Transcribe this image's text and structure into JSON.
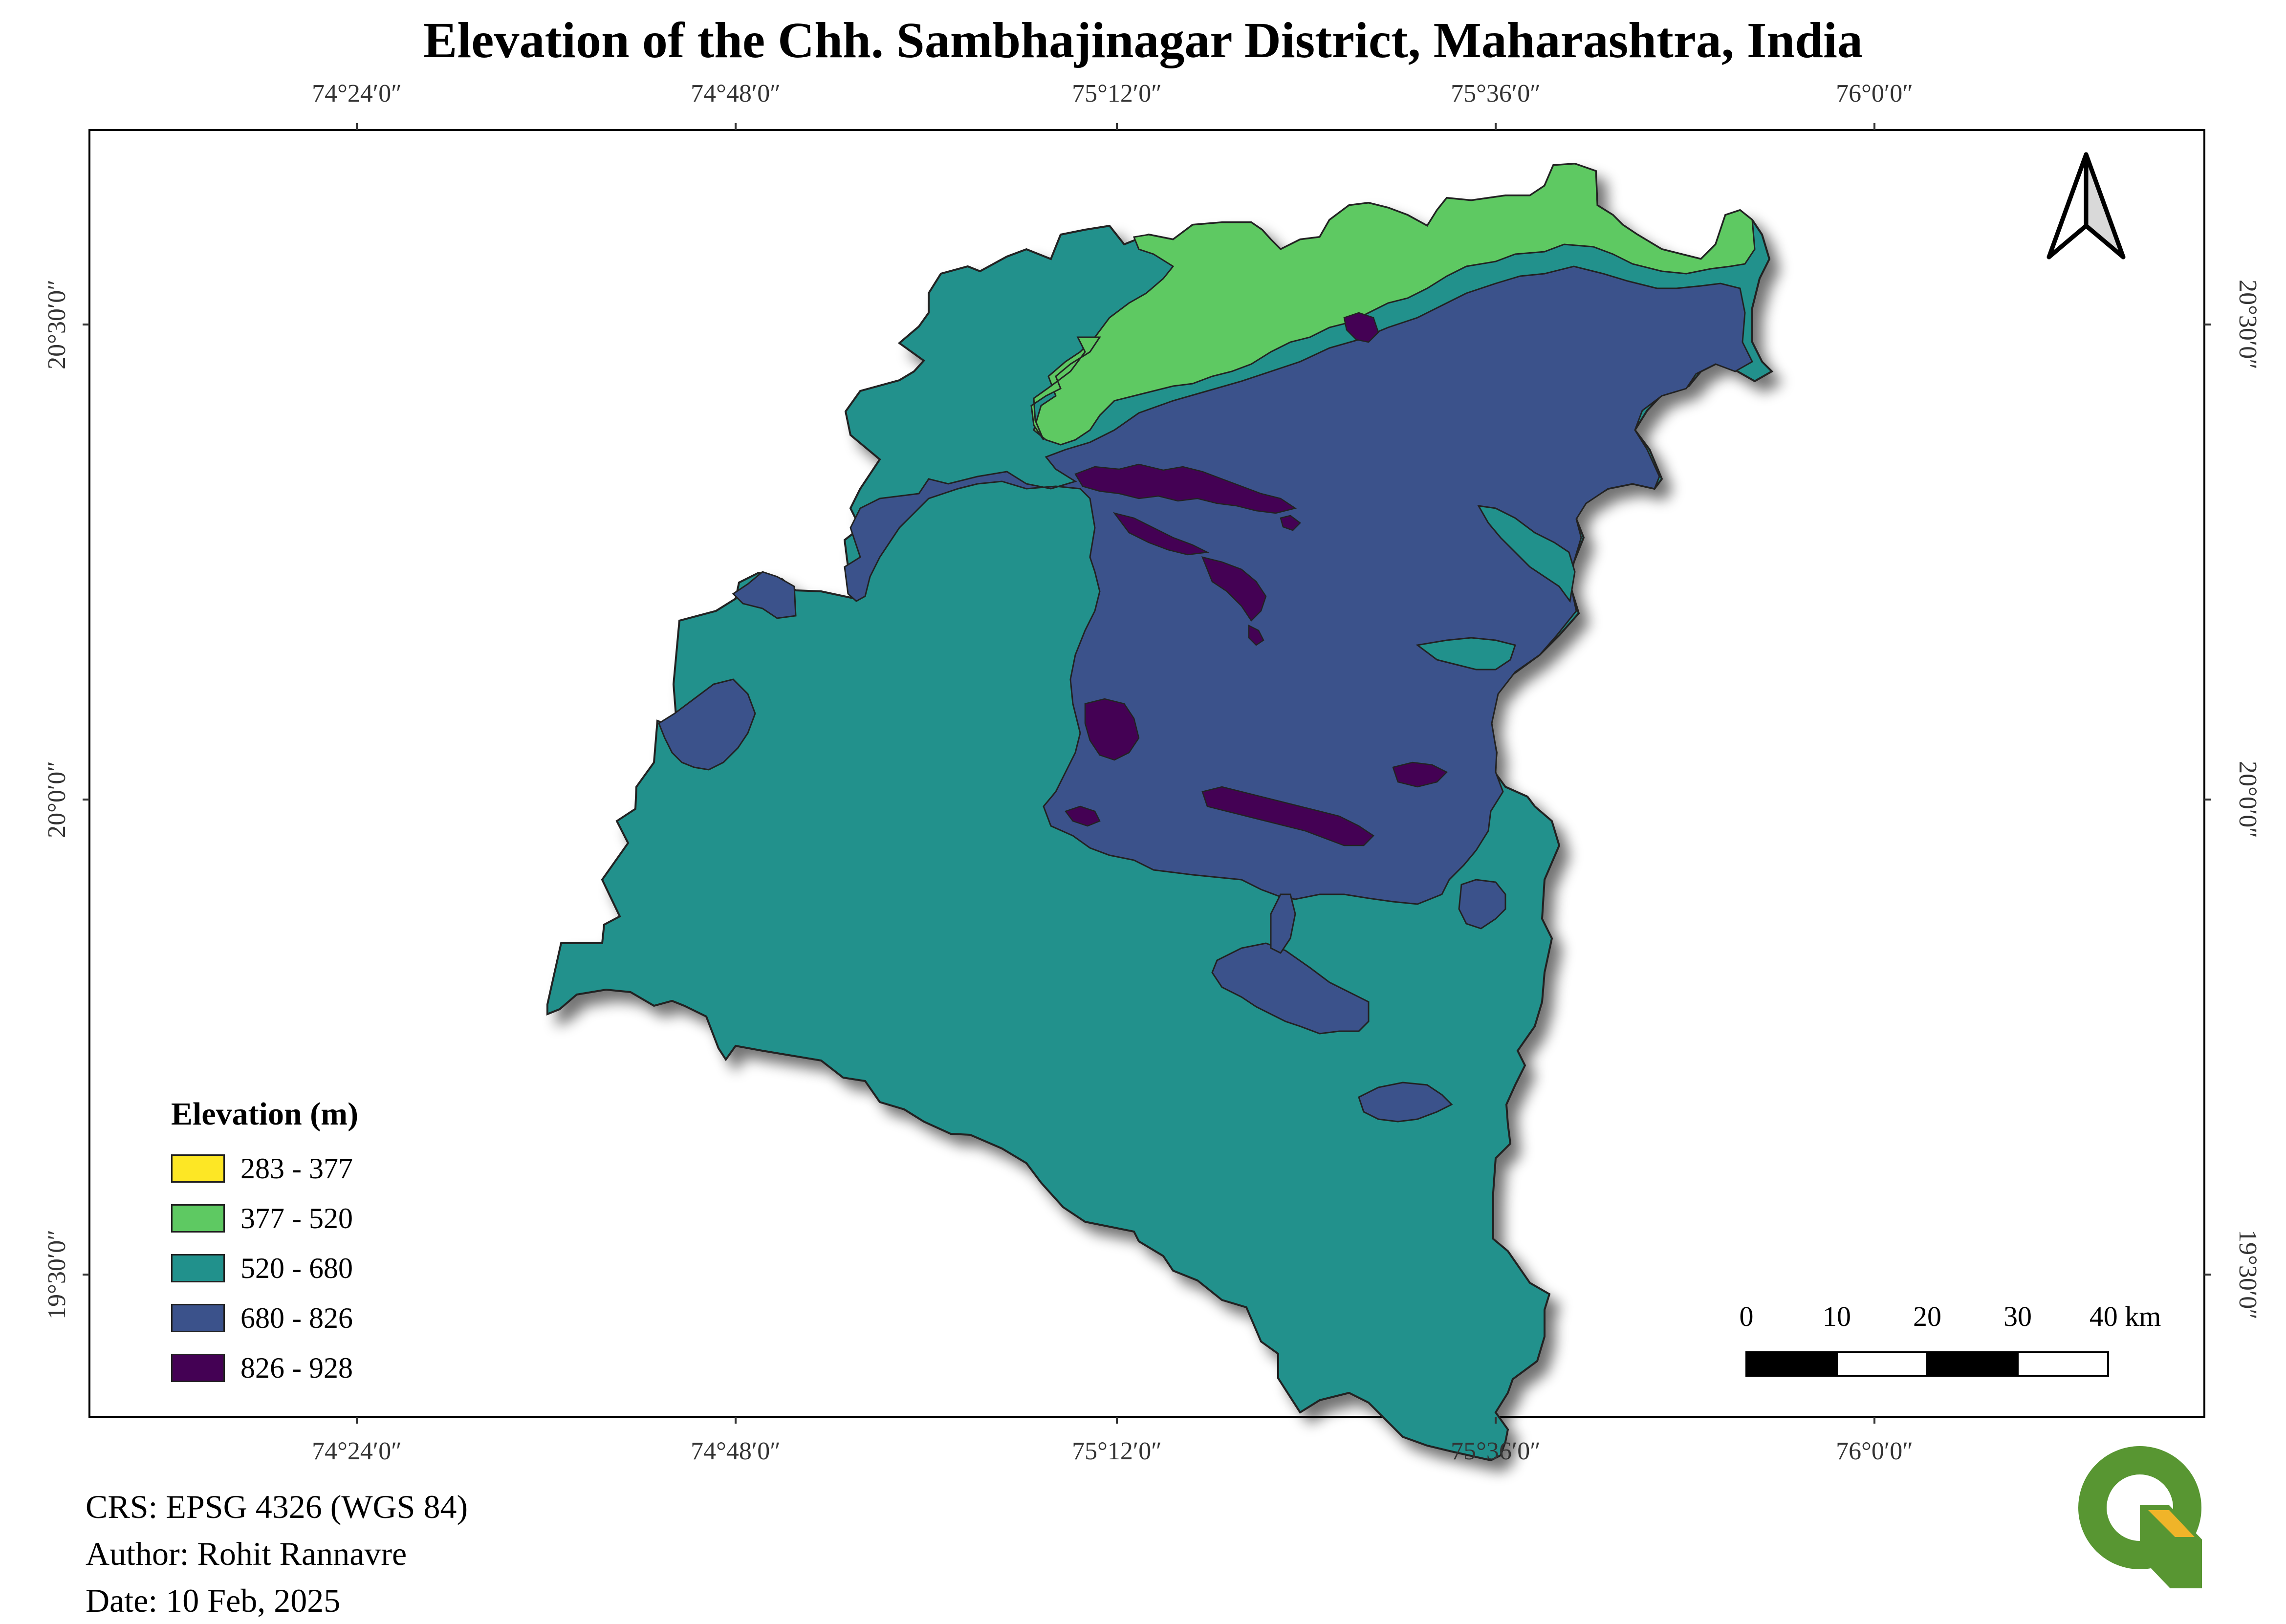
{
  "title": "Elevation of the Chh. Sambhajinagar District, Maharashtra, India",
  "grid": {
    "lon_ticks": [
      "74°24′0″",
      "74°48′0″",
      "75°12′0″",
      "75°36′0″",
      "76°0′0″"
    ],
    "lat_ticks": [
      "20°30′0″",
      "20°0′0″",
      "19°30′0″"
    ]
  },
  "legend": {
    "title": "Elevation (m)",
    "items": [
      {
        "label": "283 - 377",
        "color": "#fde725"
      },
      {
        "label": "377 - 520",
        "color": "#5ec962"
      },
      {
        "label": "520 - 680",
        "color": "#21918c"
      },
      {
        "label": "680 - 826",
        "color": "#3b528b"
      },
      {
        "label": "826 - 928",
        "color": "#440154"
      }
    ]
  },
  "scale_bar": {
    "labels": [
      "0",
      "10",
      "20",
      "30",
      "40 km"
    ]
  },
  "metadata": {
    "crs": "CRS: EPSG 4326 (WGS 84)",
    "author": "Author: Rohit Rannavre",
    "date": "Date: 10 Feb, 2025"
  },
  "icons": {
    "north_arrow": "north-arrow-icon",
    "logo": "qgis-logo-icon"
  }
}
